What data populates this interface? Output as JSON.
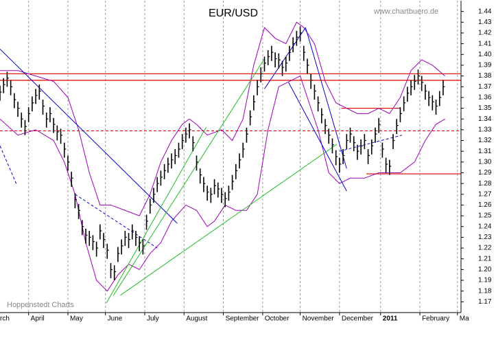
{
  "chart_data": {
    "type": "ohlc",
    "title": "EUR/USD",
    "watermark": "www.chartbuero.de",
    "source": "Hoppenstedt Charts",
    "x": [
      0,
      2,
      4,
      6,
      8,
      10,
      12,
      14,
      16,
      18,
      20,
      22,
      24,
      26,
      28,
      30,
      32,
      34,
      36,
      38,
      40,
      42,
      44,
      46,
      48,
      50,
      52,
      54,
      56,
      58,
      60,
      62,
      64,
      66,
      68,
      70,
      72,
      74,
      76,
      78,
      80,
      82,
      84,
      86,
      88,
      90,
      92,
      94,
      96,
      98,
      100,
      102,
      104,
      106,
      108,
      110,
      112,
      114,
      116,
      118,
      120,
      122,
      124,
      126,
      128,
      130,
      132,
      134,
      136,
      138,
      140,
      142,
      144,
      146,
      148,
      150,
      152,
      154,
      156,
      158,
      160,
      162,
      164,
      166,
      168,
      170,
      172,
      174,
      176,
      178,
      180,
      182,
      184,
      186,
      188,
      190,
      192,
      194,
      196,
      198,
      200,
      202,
      204,
      206,
      208,
      210,
      212,
      214,
      216,
      218,
      220,
      222,
      224,
      226,
      228,
      230,
      232,
      234,
      236,
      238,
      240,
      242,
      244,
      246,
      248
    ],
    "series": [
      {
        "color": "#000000",
        "high": [
          1.371,
          1.378,
          1.384,
          1.376,
          1.364,
          1.356,
          1.346,
          1.339,
          1.351,
          1.361,
          1.368,
          1.372,
          1.358,
          1.346,
          1.351,
          1.341,
          1.334,
          1.331,
          1.318,
          1.306,
          1.291,
          1.271,
          1.261,
          1.246,
          1.238,
          1.236,
          1.232,
          1.226,
          1.242,
          1.234,
          1.224,
          1.206,
          1.204,
          1.221,
          1.228,
          1.236,
          1.234,
          1.242,
          1.236,
          1.231,
          1.228,
          1.251,
          1.266,
          1.276,
          1.286,
          1.292,
          1.298,
          1.304,
          1.308,
          1.312,
          1.318,
          1.326,
          1.332,
          1.336,
          1.324,
          1.306,
          1.294,
          1.286,
          1.278,
          1.276,
          1.284,
          1.281,
          1.276,
          1.272,
          1.278,
          1.288,
          1.298,
          1.308,
          1.318,
          1.332,
          1.348,
          1.362,
          1.376,
          1.388,
          1.398,
          1.404,
          1.408,
          1.402,
          1.401,
          1.394,
          1.398,
          1.408,
          1.416,
          1.422,
          1.426,
          1.408,
          1.396,
          1.382,
          1.372,
          1.361,
          1.35,
          1.34,
          1.331,
          1.322,
          1.311,
          1.304,
          1.312,
          1.326,
          1.332,
          1.324,
          1.316,
          1.321,
          1.326,
          1.312,
          1.321,
          1.332,
          1.341,
          1.318,
          1.304,
          1.302,
          1.326,
          1.34,
          1.351,
          1.361,
          1.37,
          1.376,
          1.381,
          1.386,
          1.38,
          1.372,
          1.366,
          1.362,
          1.358,
          1.366,
          1.376
        ],
        "low": [
          1.357,
          1.364,
          1.37,
          1.362,
          1.35,
          1.342,
          1.332,
          1.325,
          1.337,
          1.347,
          1.354,
          1.358,
          1.344,
          1.332,
          1.337,
          1.327,
          1.32,
          1.317,
          1.304,
          1.292,
          1.277,
          1.257,
          1.247,
          1.232,
          1.224,
          1.222,
          1.218,
          1.212,
          1.228,
          1.22,
          1.21,
          1.192,
          1.19,
          1.207,
          1.214,
          1.222,
          1.22,
          1.228,
          1.222,
          1.217,
          1.214,
          1.237,
          1.252,
          1.262,
          1.272,
          1.278,
          1.284,
          1.29,
          1.294,
          1.298,
          1.304,
          1.312,
          1.318,
          1.322,
          1.31,
          1.292,
          1.28,
          1.272,
          1.264,
          1.262,
          1.27,
          1.267,
          1.262,
          1.258,
          1.264,
          1.274,
          1.284,
          1.294,
          1.304,
          1.318,
          1.334,
          1.348,
          1.362,
          1.374,
          1.384,
          1.39,
          1.394,
          1.388,
          1.387,
          1.38,
          1.384,
          1.394,
          1.402,
          1.408,
          1.412,
          1.394,
          1.382,
          1.368,
          1.358,
          1.347,
          1.336,
          1.326,
          1.317,
          1.308,
          1.297,
          1.29,
          1.298,
          1.312,
          1.318,
          1.31,
          1.302,
          1.307,
          1.312,
          1.298,
          1.307,
          1.318,
          1.327,
          1.304,
          1.29,
          1.288,
          1.312,
          1.326,
          1.337,
          1.347,
          1.356,
          1.362,
          1.367,
          1.372,
          1.366,
          1.358,
          1.352,
          1.348,
          1.344,
          1.352,
          1.362
        ],
        "close": [
          1.365,
          1.372,
          1.378,
          1.37,
          1.358,
          1.35,
          1.34,
          1.333,
          1.345,
          1.355,
          1.362,
          1.366,
          1.352,
          1.34,
          1.345,
          1.335,
          1.328,
          1.325,
          1.312,
          1.3,
          1.285,
          1.265,
          1.255,
          1.24,
          1.232,
          1.23,
          1.226,
          1.22,
          1.236,
          1.228,
          1.218,
          1.2,
          1.198,
          1.215,
          1.222,
          1.23,
          1.228,
          1.236,
          1.23,
          1.225,
          1.222,
          1.245,
          1.26,
          1.27,
          1.28,
          1.286,
          1.292,
          1.298,
          1.302,
          1.306,
          1.312,
          1.32,
          1.326,
          1.33,
          1.318,
          1.3,
          1.288,
          1.28,
          1.272,
          1.27,
          1.278,
          1.275,
          1.27,
          1.266,
          1.272,
          1.282,
          1.292,
          1.302,
          1.312,
          1.326,
          1.342,
          1.356,
          1.37,
          1.382,
          1.392,
          1.398,
          1.402,
          1.396,
          1.395,
          1.388,
          1.392,
          1.402,
          1.41,
          1.416,
          1.42,
          1.402,
          1.39,
          1.376,
          1.366,
          1.355,
          1.344,
          1.334,
          1.325,
          1.316,
          1.305,
          1.298,
          1.306,
          1.32,
          1.326,
          1.318,
          1.31,
          1.315,
          1.32,
          1.306,
          1.315,
          1.326,
          1.335,
          1.312,
          1.298,
          1.296,
          1.32,
          1.334,
          1.345,
          1.355,
          1.364,
          1.37,
          1.375,
          1.38,
          1.374,
          1.366,
          1.36,
          1.356,
          1.352,
          1.36,
          1.37
        ]
      }
    ],
    "bands": [
      {
        "color": "#9b00b5",
        "x": [
          0,
          10,
          20,
          30,
          38,
          44,
          50,
          56,
          62,
          70,
          78,
          84,
          90,
          96,
          102,
          106,
          110,
          116,
          124,
          130,
          136,
          142,
          148,
          154,
          160,
          166,
          170,
          176,
          182,
          188,
          194,
          200,
          206,
          212,
          218,
          224,
          230,
          236,
          242,
          249
        ],
        "values": [
          1.385,
          1.385,
          1.38,
          1.375,
          1.36,
          1.33,
          1.29,
          1.26,
          1.26,
          1.255,
          1.25,
          1.27,
          1.3,
          1.32,
          1.335,
          1.34,
          1.335,
          1.325,
          1.33,
          1.32,
          1.34,
          1.39,
          1.425,
          1.415,
          1.41,
          1.43,
          1.425,
          1.41,
          1.375,
          1.355,
          1.35,
          1.345,
          1.345,
          1.35,
          1.345,
          1.36,
          1.385,
          1.395,
          1.39,
          1.38
        ]
      },
      {
        "color": "#9b00b5",
        "x": [
          0,
          10,
          20,
          30,
          36,
          42,
          48,
          54,
          60,
          66,
          72,
          78,
          84,
          90,
          96,
          104,
          110,
          116,
          120,
          126,
          132,
          138,
          144,
          150,
          156,
          162,
          168,
          172,
          178,
          184,
          190,
          196,
          204,
          212,
          218,
          224,
          232,
          238,
          244,
          249
        ],
        "values": [
          1.34,
          1.325,
          1.33,
          1.32,
          1.3,
          1.27,
          1.225,
          1.19,
          1.18,
          1.195,
          1.205,
          1.2,
          1.215,
          1.225,
          1.245,
          1.26,
          1.255,
          1.24,
          1.245,
          1.26,
          1.255,
          1.255,
          1.27,
          1.33,
          1.37,
          1.375,
          1.38,
          1.36,
          1.33,
          1.29,
          1.28,
          1.285,
          1.285,
          1.29,
          1.29,
          1.29,
          1.3,
          1.32,
          1.335,
          1.34
        ]
      }
    ],
    "lines": [
      {
        "x": [
          0,
          99.2
        ],
        "y": [
          1.405,
          1.243
        ],
        "color": "#0000cc",
        "dash": false
      },
      {
        "x": [
          0,
          9.6
        ],
        "y": [
          1.315,
          1.278
        ],
        "color": "#0000cc",
        "dash": true
      },
      {
        "x": [
          42,
          88
        ],
        "y": [
          1.27,
          1.22
        ],
        "color": "#0000cc",
        "dash": true
      },
      {
        "x": [
          59.6,
          115.4
        ],
        "y": [
          1.169,
          1.3325
        ],
        "color": "#22bb22",
        "dash": false
      },
      {
        "x": [
          63.5,
          148
        ],
        "y": [
          1.176,
          1.396
        ],
        "color": "#22bb22",
        "dash": false
      },
      {
        "x": [
          67.3,
          188.5
        ],
        "y": [
          1.176,
          1.3165
        ],
        "color": "#22bb22",
        "dash": false
      },
      {
        "x": [
          148,
          171
        ],
        "y": [
          1.368,
          1.425
        ],
        "color": "#0000cc",
        "dash": false
      },
      {
        "x": [
          171,
          194
        ],
        "y": [
          1.425,
          1.294
        ],
        "color": "#0000cc",
        "dash": false
      },
      {
        "x": [
          161.5,
          194
        ],
        "y": [
          1.374,
          1.273
        ],
        "color": "#0000cc",
        "dash": false
      },
      {
        "x": [
          190,
          225
        ],
        "y": [
          1.31,
          1.325
        ],
        "color": "#0000cc",
        "dash": true
      }
    ],
    "hlines": [
      {
        "y": 1.382,
        "color": "#e00000",
        "dash": false
      },
      {
        "y": 1.376,
        "color": "#e00000",
        "dash": false
      },
      {
        "y": 1.329,
        "color": "#e00000",
        "dash": true
      },
      {
        "y": 1.289,
        "color": "#e00000",
        "dash": false,
        "x": [
          205,
          258
        ]
      },
      {
        "y": 1.35,
        "color": "#e00000",
        "dash": false,
        "x": [
          191,
          224
        ]
      }
    ],
    "xlim": [
      0,
      258
    ],
    "ylim": [
      1.16,
      1.45
    ],
    "xticks": [
      {
        "value": -6,
        "label": "rch"
      },
      {
        "value": 16,
        "label": "April"
      },
      {
        "value": 38,
        "label": "May"
      },
      {
        "value": 59,
        "label": "June"
      },
      {
        "value": 81,
        "label": "July"
      },
      {
        "value": 103,
        "label": "August"
      },
      {
        "value": 125,
        "label": "September"
      },
      {
        "value": 147,
        "label": "October"
      },
      {
        "value": 168,
        "label": "November"
      },
      {
        "value": 190,
        "label": "December"
      },
      {
        "value": 213,
        "label": "2011"
      },
      {
        "value": 235,
        "label": "February"
      },
      {
        "value": 256,
        "label": "Ma"
      }
    ],
    "yticks": [
      1.17,
      1.18,
      1.19,
      {
        "value": 1.2,
        "label": "1.20"
      },
      1.21,
      1.22,
      1.23,
      1.24,
      1.25,
      1.26,
      1.27,
      1.28,
      1.29,
      {
        "value": 1.3,
        "label": "1.30"
      },
      1.31,
      1.32,
      1.33,
      1.34,
      1.35,
      1.36,
      1.37,
      1.38,
      1.39,
      {
        "value": 1.4,
        "label": "1.40"
      },
      1.41,
      1.42,
      1.43,
      1.44
    ],
    "grid": true
  }
}
